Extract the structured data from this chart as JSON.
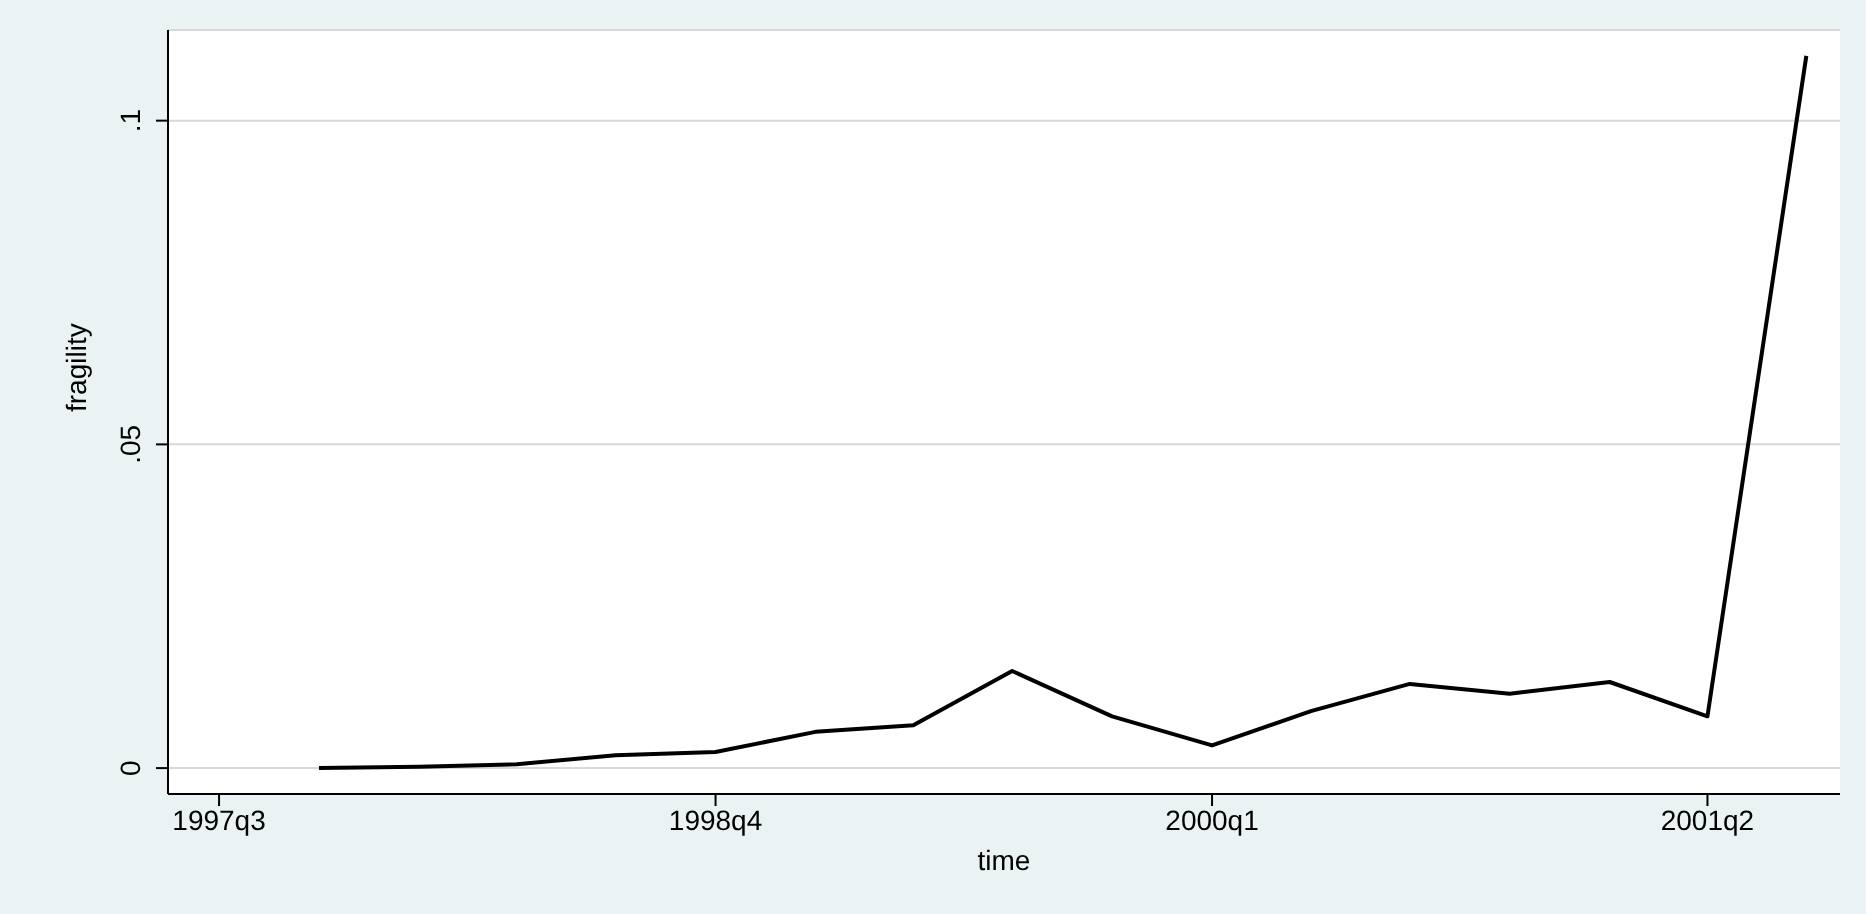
{
  "chart_data": {
    "type": "line",
    "xlabel": "time",
    "ylabel": "fragility",
    "x": [
      "1997-10",
      "1998-01",
      "1998-04",
      "1998-07",
      "1998-10",
      "1999-01",
      "1999-04",
      "1999-07",
      "1999-10",
      "2000-01",
      "2000-04",
      "2000-07",
      "2000-10",
      "2001-01",
      "2001-04",
      "2001-07"
    ],
    "series": [
      {
        "color": "#000000",
        "values": [
          0,
          0.0002,
          0.0006,
          0.002,
          0.0025,
          0.0056,
          0.0066,
          0.015,
          0.008,
          0.0035,
          0.0088,
          0.013,
          0.0115,
          0.0133,
          0.008,
          0.11
        ]
      }
    ],
    "xlim": [
      "1997-05-15",
      "2001-08-01"
    ],
    "xticks": [
      {
        "value": "1997-07",
        "label": "1997q3"
      },
      {
        "value": "1998-10",
        "label": "1998q4"
      },
      {
        "value": "2000-01",
        "label": "2000q1"
      },
      {
        "value": "2001-04",
        "label": "2001q2"
      }
    ],
    "ylim": [
      -0.004,
      0.114
    ],
    "yticks": [
      {
        "value": 0,
        "label": "0"
      },
      {
        "value": 0.05,
        "label": ".05"
      },
      {
        "value": 0.1,
        "label": ".1"
      }
    ],
    "grid": "y",
    "legend": false,
    "marker": "none",
    "line_style": "solid"
  }
}
